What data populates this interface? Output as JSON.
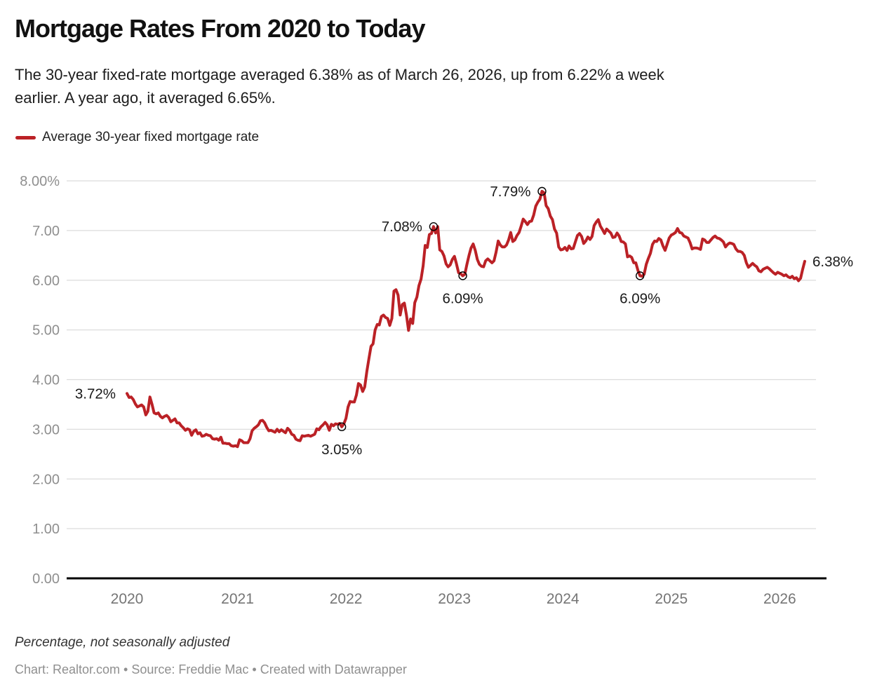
{
  "header": {
    "title": "Mortgage Rates From 2020 to Today",
    "subtitle": "The 30-year fixed-rate mortgage averaged 6.38% as of March 26, 2026, up from 6.22% a week earlier. A year ago, it averaged 6.65%.",
    "legend_label": "Average 30-year fixed mortgage rate"
  },
  "footer": {
    "note": "Percentage, not seasonally adjusted",
    "credit": "Chart: Realtor.com • Source: Freddie Mac • Created with Datawrapper"
  },
  "colors": {
    "line": "#bb2126",
    "grid": "#dcdcdc",
    "axis": "#000000",
    "y_label": "#8f8f8f",
    "x_label": "#757575",
    "annotation": "#1a1a1a",
    "marker_stroke": "#000000"
  },
  "chart_data": {
    "type": "line",
    "title": "Mortgage Rates From 2020 to Today",
    "series_name": "Average 30-year fixed mortgage rate",
    "unit": "percent",
    "frequency": "weekly",
    "start": "2020-01-02",
    "end": "2026-03-26",
    "ylim": [
      0,
      8
    ],
    "grid": true,
    "legend_position": "top-left",
    "y_ticks": [
      {
        "label": "8.00%",
        "value": 8
      },
      {
        "label": "7.00",
        "value": 7
      },
      {
        "label": "6.00",
        "value": 6
      },
      {
        "label": "5.00",
        "value": 5
      },
      {
        "label": "4.00",
        "value": 4
      },
      {
        "label": "3.00",
        "value": 3
      },
      {
        "label": "2.00",
        "value": 2
      },
      {
        "label": "1.00",
        "value": 1
      },
      {
        "label": "0.00",
        "value": 0
      }
    ],
    "x_ticks": [
      {
        "label": "2020",
        "index": 0
      },
      {
        "label": "2021",
        "index": 53
      },
      {
        "label": "2022",
        "index": 105
      },
      {
        "label": "2023",
        "index": 157
      },
      {
        "label": "2024",
        "index": 209
      },
      {
        "label": "2025",
        "index": 261
      },
      {
        "label": "2026",
        "index": 313
      }
    ],
    "values": [
      3.72,
      3.64,
      3.65,
      3.6,
      3.51,
      3.45,
      3.47,
      3.49,
      3.45,
      3.29,
      3.36,
      3.65,
      3.5,
      3.33,
      3.31,
      3.33,
      3.26,
      3.23,
      3.26,
      3.28,
      3.24,
      3.15,
      3.18,
      3.21,
      3.13,
      3.13,
      3.07,
      3.03,
      2.98,
      3.01,
      2.99,
      2.88,
      2.96,
      2.99,
      2.91,
      2.93,
      2.86,
      2.87,
      2.9,
      2.88,
      2.87,
      2.81,
      2.8,
      2.81,
      2.78,
      2.84,
      2.72,
      2.72,
      2.71,
      2.71,
      2.67,
      2.66,
      2.67,
      2.65,
      2.79,
      2.77,
      2.73,
      2.73,
      2.73,
      2.81,
      2.97,
      3.02,
      3.05,
      3.09,
      3.17,
      3.18,
      3.13,
      3.04,
      2.97,
      2.98,
      2.96,
      2.94,
      3.0,
      2.95,
      2.99,
      2.96,
      2.93,
      3.02,
      2.98,
      2.9,
      2.88,
      2.8,
      2.78,
      2.77,
      2.87,
      2.86,
      2.87,
      2.88,
      2.86,
      2.88,
      2.9,
      3.01,
      2.99,
      3.05,
      3.09,
      3.14,
      3.09,
      2.98,
      3.1,
      3.07,
      3.11,
      3.1,
      3.12,
      3.05,
      3.11,
      3.22,
      3.45,
      3.56,
      3.55,
      3.55,
      3.69,
      3.92,
      3.89,
      3.76,
      3.85,
      4.16,
      4.42,
      4.67,
      4.72,
      5.0,
      5.11,
      5.1,
      5.27,
      5.3,
      5.25,
      5.23,
      5.09,
      5.23,
      5.78,
      5.81,
      5.7,
      5.3,
      5.51,
      5.54,
      5.3,
      4.99,
      5.22,
      5.13,
      5.55,
      5.66,
      5.89,
      6.02,
      6.29,
      6.7,
      6.66,
      6.92,
      6.94,
      7.08,
      6.95,
      7.08,
      6.61,
      6.58,
      6.49,
      6.33,
      6.27,
      6.31,
      6.42,
      6.48,
      6.33,
      6.15,
      6.13,
      6.09,
      6.12,
      6.32,
      6.5,
      6.65,
      6.73,
      6.6,
      6.42,
      6.32,
      6.28,
      6.27,
      6.39,
      6.43,
      6.39,
      6.35,
      6.39,
      6.57,
      6.79,
      6.71,
      6.67,
      6.67,
      6.71,
      6.81,
      6.96,
      6.78,
      6.81,
      6.9,
      6.96,
      7.09,
      7.23,
      7.18,
      7.12,
      7.18,
      7.19,
      7.31,
      7.49,
      7.57,
      7.63,
      7.79,
      7.76,
      7.5,
      7.44,
      7.29,
      7.22,
      7.03,
      6.95,
      6.67,
      6.61,
      6.62,
      6.66,
      6.6,
      6.69,
      6.63,
      6.64,
      6.77,
      6.9,
      6.94,
      6.88,
      6.74,
      6.79,
      6.87,
      6.82,
      6.88,
      7.1,
      7.17,
      7.22,
      7.09,
      7.02,
      6.94,
      7.03,
      6.99,
      6.95,
      6.86,
      6.87,
      6.95,
      6.89,
      6.78,
      6.77,
      6.73,
      6.47,
      6.49,
      6.46,
      6.35,
      6.35,
      6.2,
      6.09,
      6.08,
      6.12,
      6.32,
      6.44,
      6.54,
      6.72,
      6.79,
      6.78,
      6.84,
      6.81,
      6.69,
      6.6,
      6.72,
      6.85,
      6.91,
      6.93,
      6.96,
      7.04,
      6.96,
      6.95,
      6.89,
      6.87,
      6.85,
      6.76,
      6.63,
      6.65,
      6.65,
      6.64,
      6.62,
      6.83,
      6.81,
      6.76,
      6.76,
      6.81,
      6.86,
      6.89,
      6.85,
      6.84,
      6.81,
      6.77,
      6.67,
      6.72,
      6.75,
      6.74,
      6.72,
      6.63,
      6.58,
      6.58,
      6.56,
      6.5,
      6.35,
      6.26,
      6.3,
      6.34,
      6.3,
      6.27,
      6.19,
      6.17,
      6.22,
      6.24,
      6.26,
      6.23,
      6.19,
      6.15,
      6.12,
      6.16,
      6.14,
      6.12,
      6.09,
      6.11,
      6.07,
      6.05,
      6.08,
      6.03,
      6.05,
      5.99,
      6.04,
      6.22,
      6.38
    ],
    "annotations": [
      {
        "label": "3.72%",
        "index": 0,
        "marker": false,
        "placement": "left"
      },
      {
        "label": "3.05%",
        "index": 103,
        "marker": true,
        "placement": "below"
      },
      {
        "label": "7.08%",
        "index": 147,
        "marker": true,
        "placement": "left"
      },
      {
        "label": "6.09%",
        "index": 161,
        "marker": true,
        "placement": "below"
      },
      {
        "label": "7.79%",
        "index": 199,
        "marker": true,
        "placement": "left"
      },
      {
        "label": "6.09%",
        "index": 246,
        "marker": true,
        "placement": "below"
      },
      {
        "label": "6.38%",
        "index": 325,
        "marker": false,
        "placement": "right"
      }
    ]
  }
}
